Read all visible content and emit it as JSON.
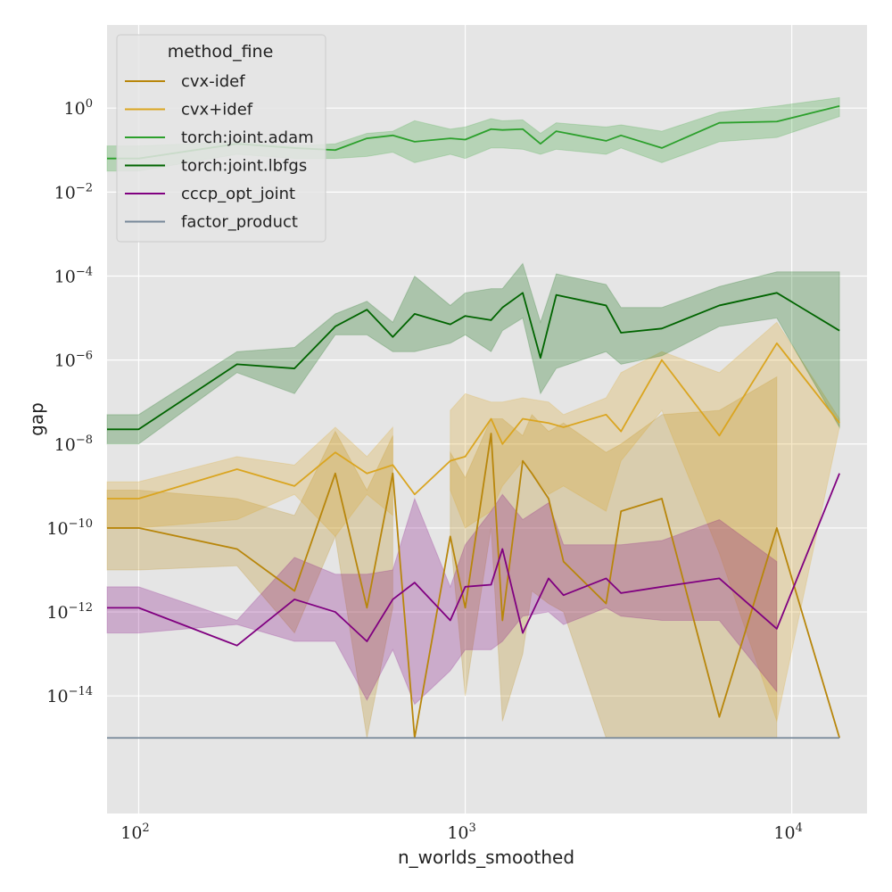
{
  "chart_data": {
    "type": "line",
    "xlabel": "n_worlds_smoothed",
    "ylabel": "gap",
    "xscale": "log",
    "yscale": "log",
    "xlim": [
      80,
      17000
    ],
    "ylim_log10": [
      -16.8,
      1.98
    ],
    "xticks": [
      {
        "value": 100,
        "base": "10",
        "exp": "2"
      },
      {
        "value": 1000,
        "base": "10",
        "exp": "3"
      },
      {
        "value": 10000,
        "base": "10",
        "exp": "4"
      }
    ],
    "yticks": [
      {
        "value": 1,
        "base": "10",
        "exp": "0"
      },
      {
        "value": 0.01,
        "base": "10",
        "exp": "−2"
      },
      {
        "value": 0.0001,
        "base": "10",
        "exp": "−4"
      },
      {
        "value": 1e-06,
        "base": "10",
        "exp": "−6"
      },
      {
        "value": 1e-08,
        "base": "10",
        "exp": "−8"
      },
      {
        "value": 1e-10,
        "base": "10",
        "exp": "−10"
      },
      {
        "value": 1e-12,
        "base": "10",
        "exp": "−12"
      },
      {
        "value": 1e-14,
        "base": "10",
        "exp": "−14"
      }
    ],
    "grid": true,
    "legend": {
      "title": "method_fine",
      "position": "top-left"
    },
    "series": [
      {
        "name": "cvx-idef",
        "color": "#b8860b",
        "x": [
          80,
          100,
          200,
          300,
          400,
          500,
          600,
          700,
          900,
          1000,
          1200,
          1300,
          1500,
          1600,
          1800,
          2000,
          2700,
          3000,
          4000,
          6000,
          9000,
          14000
        ],
        "y": [
          -10,
          -10,
          -10.5,
          -11.5,
          -8.7,
          -11.9,
          -8.7,
          -15,
          -10.2,
          -11.9,
          -7.75,
          -12.2,
          -8.4,
          -8.7,
          -9.3,
          -10.8,
          -11.8,
          -9.6,
          -9.3,
          -14.5,
          -10,
          -15
        ],
        "lo": [
          -11,
          -11,
          -10.9,
          -12.5,
          -10.2,
          -15,
          -11.9,
          null,
          -10.2,
          -14,
          -10,
          -14.6,
          -13,
          -11.5,
          -11.8,
          -12,
          -15,
          -15,
          -15,
          -15,
          -15,
          null
        ],
        "hi": [
          -9.1,
          -9.1,
          -9.3,
          -9.7,
          -7.7,
          -9.1,
          -7.8,
          null,
          -8.2,
          -8.8,
          -7.4,
          -7.4,
          -7.8,
          -7.3,
          -7.7,
          -7.5,
          -8.2,
          -8,
          -7.3,
          -7.2,
          -6.4,
          null
        ]
      },
      {
        "name": "cvx+idef",
        "color": "#daa520",
        "x": [
          80,
          100,
          200,
          300,
          400,
          500,
          600,
          700,
          900,
          1000,
          1200,
          1300,
          1500,
          1800,
          2000,
          2700,
          3000,
          4000,
          6000,
          9000,
          14000
        ],
        "y": [
          -9.3,
          -9.3,
          -8.6,
          -9,
          -8.2,
          -8.7,
          -8.5,
          -9.2,
          -8.4,
          -8.3,
          -7.4,
          -8,
          -7.4,
          -7.5,
          -7.6,
          -7.3,
          -7.7,
          -6,
          -7.8,
          -5.6,
          -7.5
        ],
        "lo": [
          -10,
          -10,
          -9.8,
          -9.2,
          -10.2,
          -9.2,
          -9.7,
          null,
          -9.1,
          -10,
          -9.6,
          -9,
          -8.4,
          -9.2,
          -9,
          -9.6,
          -8.4,
          -7.2,
          -10.6,
          -14.6,
          -7.6
        ],
        "hi": [
          -8.9,
          -8.9,
          -8.3,
          -8.5,
          -7.6,
          -8.3,
          -7.6,
          null,
          -7.2,
          -6.8,
          -7,
          -7,
          -6.9,
          -7,
          -7.3,
          -6.9,
          -6.3,
          -5.8,
          -6.3,
          -5.1,
          -7.4
        ]
      },
      {
        "name": "torch:joint.adam",
        "color": "#2ca02c",
        "x": [
          80,
          100,
          200,
          300,
          400,
          500,
          600,
          700,
          900,
          1000,
          1200,
          1300,
          1500,
          1700,
          1900,
          2700,
          3000,
          4000,
          6000,
          9000,
          14000
        ],
        "y": [
          -1.2,
          -1.2,
          -0.85,
          -0.95,
          -1,
          -0.72,
          -0.65,
          -0.8,
          -0.72,
          -0.75,
          -0.5,
          -0.52,
          -0.5,
          -0.85,
          -0.55,
          -0.78,
          -0.65,
          -0.95,
          -0.35,
          -0.32,
          0.05
        ],
        "lo": [
          -1.5,
          -1.5,
          -1.1,
          -1.2,
          -1.2,
          -1.15,
          -1.05,
          -1.3,
          -1.1,
          -1.2,
          -0.95,
          -0.95,
          -0.98,
          -1.1,
          -0.98,
          -1.1,
          -0.95,
          -1.3,
          -0.8,
          -0.7,
          -0.2
        ],
        "hi": [
          -0.9,
          -0.9,
          -0.8,
          -0.9,
          -0.85,
          -0.6,
          -0.55,
          -0.3,
          -0.5,
          -0.45,
          -0.25,
          -0.3,
          -0.28,
          -0.6,
          -0.35,
          -0.45,
          -0.4,
          -0.55,
          -0.1,
          0.05,
          0.25
        ]
      },
      {
        "name": "torch:joint.lbfgs",
        "color": "#006400",
        "x": [
          80,
          100,
          200,
          300,
          400,
          500,
          600,
          700,
          900,
          1000,
          1200,
          1300,
          1500,
          1700,
          1900,
          2700,
          3000,
          4000,
          6000,
          9000,
          14000
        ],
        "y": [
          -7.65,
          -7.65,
          -6.1,
          -6.2,
          -5.2,
          -4.8,
          -5.45,
          -4.9,
          -5.15,
          -4.95,
          -5.05,
          -4.75,
          -4.4,
          -5.95,
          -4.45,
          -4.7,
          -5.35,
          -5.25,
          -4.7,
          -4.4,
          -5.3
        ],
        "lo": [
          -8,
          -8,
          -6.3,
          -6.8,
          -5.4,
          -5.4,
          -5.8,
          -5.8,
          -5.6,
          -5.4,
          -5.8,
          -5.3,
          -5,
          -6.8,
          -6.2,
          -5.8,
          -6.1,
          -5.9,
          -5.2,
          -5,
          -7.6
        ],
        "hi": [
          -7.3,
          -7.3,
          -5.8,
          -5.7,
          -4.9,
          -4.6,
          -5.1,
          -4,
          -4.7,
          -4.4,
          -4.3,
          -4.3,
          -3.7,
          -5.1,
          -3.95,
          -4.2,
          -4.75,
          -4.75,
          -4.25,
          -3.9,
          -3.9
        ]
      },
      {
        "name": "cccp_opt_joint",
        "color": "#800080",
        "x": [
          80,
          100,
          200,
          300,
          400,
          500,
          600,
          700,
          900,
          1000,
          1200,
          1300,
          1500,
          1800,
          2000,
          2700,
          3000,
          4000,
          6000,
          9000,
          14000
        ],
        "y": [
          -11.9,
          -11.9,
          -12.8,
          -11.7,
          -12,
          -12.7,
          -11.7,
          -11.3,
          -12.2,
          -11.4,
          -11.35,
          -10.5,
          -12.5,
          -11.2,
          -11.6,
          -11.2,
          -11.55,
          -11.4,
          -11.2,
          -12.4,
          -8.7
        ],
        "lo": [
          -12.5,
          -12.5,
          -12.3,
          -12.7,
          -12.7,
          -14.1,
          -12.9,
          -14.2,
          -13.4,
          -12.9,
          -12.9,
          -12.7,
          -12.1,
          -12,
          -12.3,
          -11.9,
          -12.1,
          -12.2,
          -12.2,
          -13.9,
          null
        ],
        "hi": [
          -11.4,
          -11.4,
          -12.2,
          -10.7,
          -11.1,
          -11.1,
          -11,
          -9.3,
          -11.4,
          -10.4,
          -9.6,
          -9.2,
          -9.8,
          -9.4,
          -10.4,
          -10.4,
          -10.4,
          -10.3,
          -9.8,
          -10.8,
          null
        ]
      },
      {
        "name": "factor_product",
        "color": "#778899",
        "x": [
          80,
          14000
        ],
        "y": [
          -15,
          -15
        ]
      }
    ]
  }
}
